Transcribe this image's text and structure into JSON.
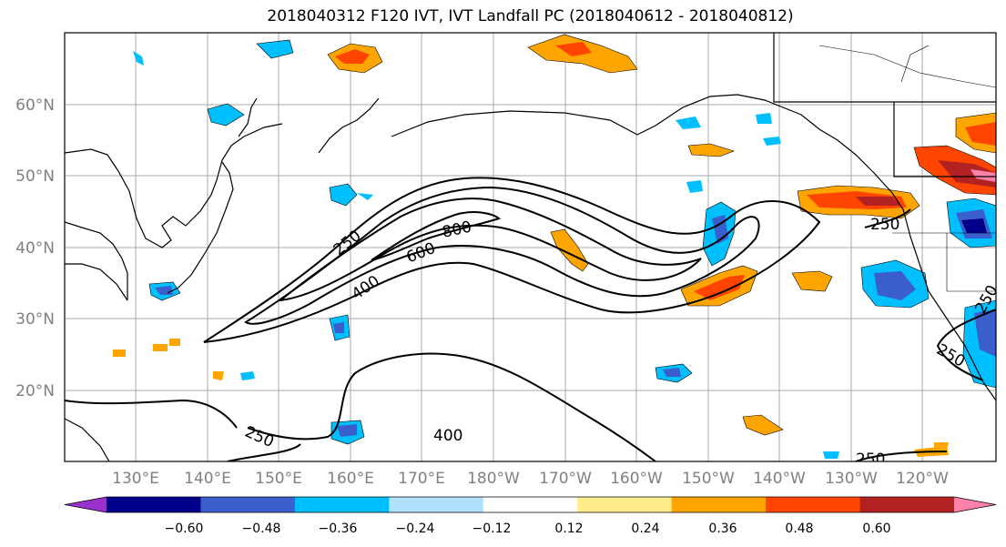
{
  "title": "2018040312 F120 IVT, IVT Landfall PC (2018040612 - 2018040812)",
  "lat_labels": [
    "60°N",
    "50°N",
    "40°N",
    "30°N",
    "20°N"
  ],
  "lon_labels": [
    "130°E",
    "140°E",
    "150°E",
    "160°E",
    "170°E",
    "180°W",
    "170°W",
    "160°W",
    "150°W",
    "140°W",
    "130°W",
    "120°W"
  ],
  "contour_labels": [
    "250",
    "400",
    "600",
    "800",
    "250",
    "400",
    "250",
    "250",
    "250",
    "250"
  ],
  "colorbar": {
    "colors": [
      "#9932cc",
      "#00008b",
      "#3a5fcd",
      "#00bfff",
      "#b0e2ff",
      "#ffffff",
      "#ffec8b",
      "#ffa500",
      "#ff4500",
      "#b22222",
      "#ff82ab"
    ],
    "tick_labels": [
      "−0.60",
      "−0.48",
      "−0.36",
      "−0.24",
      "−0.12",
      "0.12",
      "0.24",
      "0.36",
      "0.48",
      "0.60"
    ]
  }
}
